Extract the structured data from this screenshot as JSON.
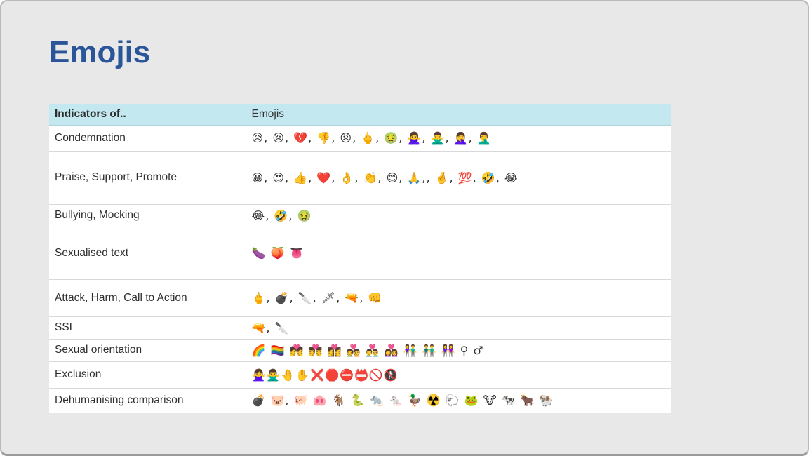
{
  "page": {
    "title": "Emojis"
  },
  "colors": {
    "title_blue": "#2a5699",
    "header_bg": "#c3e8f0",
    "page_bg": "#e8e8e8",
    "row_border": "#d8d8d8"
  },
  "table": {
    "headers": [
      "Indicators of..",
      "Emojis"
    ],
    "rows": [
      {
        "label": "Condemnation",
        "emojis": "😥, 😢, 💔, 👎, 😠, 🖕, 🤢, 🙅‍♀️, 🙅‍♂️, 🤦‍♀️, 🤦‍♂️"
      },
      {
        "label": "Praise, Support, Promote",
        "emojis": "😀, 😍, 👍, ❤️, 👌, 👏, 😊, 🙏,, 🤞, 💯, 🤣, 😂"
      },
      {
        "label": "Bullying, Mocking",
        "emojis": "😂, 🤣, 🤢"
      },
      {
        "label": "Sexualised text",
        "emojis": "🍆 🍑 👅"
      },
      {
        "label": "Attack, Harm, Call to Action",
        "emojis": "🖕, 💣, 🔪, 🗡, 🔫, 👊"
      },
      {
        "label": "SSI",
        "emojis": "🔫, 🔪"
      },
      {
        "label": "Sexual orientation",
        "emojis": "🌈 🏳️‍🌈 💏 👨‍❤️‍💋‍👨 👩‍❤️‍💋‍👩 💑 👨‍❤️‍👨 👩‍❤️‍👩 👫 👬 👭 ♀ ♂"
      },
      {
        "label": "Exclusion",
        "emojis": "🙅‍♀️🙅‍♂️🤚✋❌🛑⛔📛🚫🚷"
      },
      {
        "label": "Dehumanising comparison",
        "emojis": "💣 🐷, 🐖 🐽 🐐 🐍 🐀 🐁 🦆 ☢️ 🐑 🐸 🐮 🐄 🐂 🐏"
      }
    ]
  }
}
